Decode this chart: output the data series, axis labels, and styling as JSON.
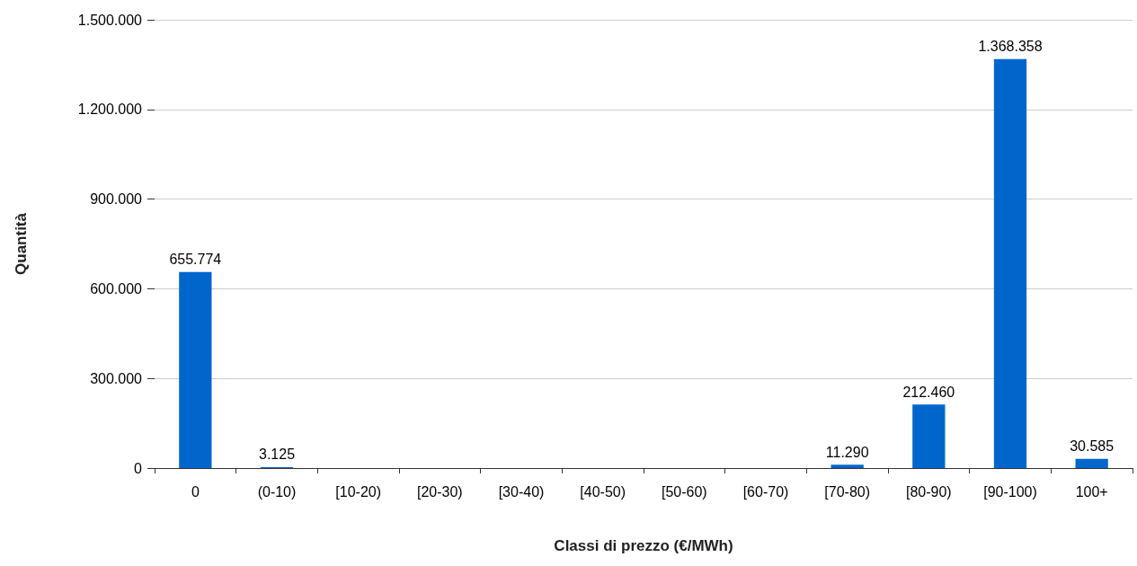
{
  "chart_data": {
    "type": "bar",
    "xlabel": "Classi di prezzo (€/MWh)",
    "ylabel": "Quantità",
    "categories": [
      "0",
      "(0-10)",
      "[10-20)",
      "[20-30)",
      "[30-40)",
      "[40-50)",
      "[50-60)",
      "[60-70)",
      "[70-80)",
      "[80-90)",
      "[90-100)",
      "100+"
    ],
    "values": [
      655774,
      3125,
      0,
      0,
      0,
      0,
      0,
      0,
      11290,
      212460,
      1368358,
      30585
    ],
    "value_labels": [
      "655.774",
      "3.125",
      null,
      null,
      null,
      null,
      null,
      null,
      "11.290",
      "212.460",
      "1.368.358",
      "30.585"
    ],
    "color": "#0066cc",
    "ylim": [
      0,
      1500000
    ],
    "yticks": [
      0,
      {
        "value": 300000,
        "label": "300.000"
      },
      {
        "value": 600000,
        "label": "600.000"
      },
      {
        "value": 900000,
        "label": "900.000"
      },
      {
        "value": 1200000,
        "label": "1.200.000"
      },
      {
        "value": 1500000,
        "label": "1.500.000"
      }
    ],
    "grid": "y"
  }
}
